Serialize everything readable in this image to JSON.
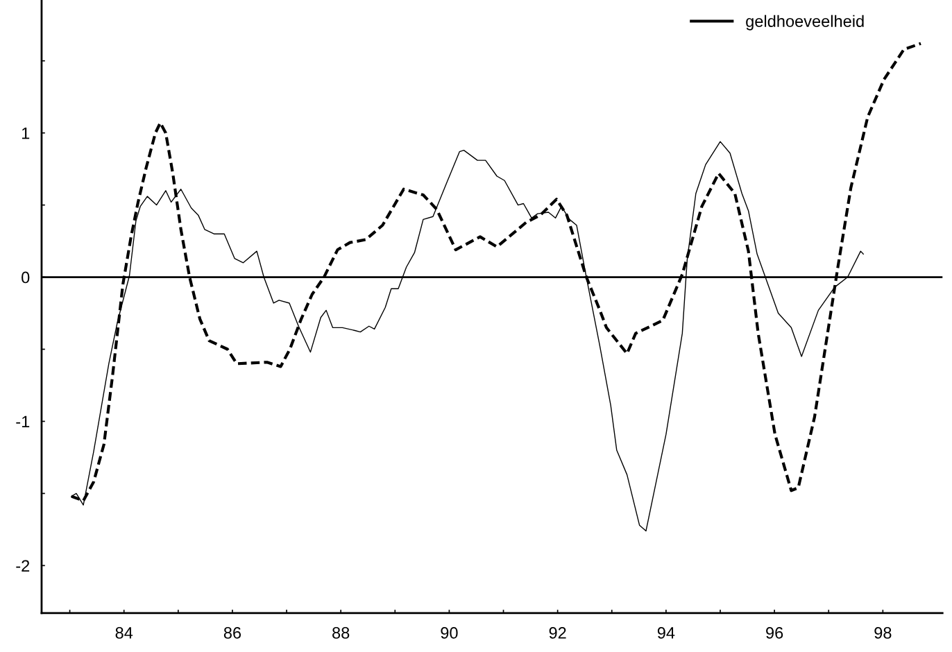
{
  "chart_data": {
    "type": "line",
    "xlim": [
      82.48,
      99.1
    ],
    "ylim": [
      -2.33,
      1.92
    ],
    "xticks": [
      {
        "value": 83,
        "label": null
      },
      84,
      {
        "value": 85,
        "label": null
      },
      86,
      {
        "value": 87,
        "label": null
      },
      88,
      {
        "value": 89,
        "label": null
      },
      90,
      {
        "value": 91,
        "label": null
      },
      92,
      {
        "value": 93,
        "label": null
      },
      94,
      {
        "value": 95,
        "label": null
      },
      96,
      {
        "value": 97,
        "label": null
      },
      98
    ],
    "yticks": [
      -2,
      {
        "value": -1.5,
        "label": null
      },
      -1,
      {
        "value": -0.5,
        "label": null
      },
      0,
      {
        "value": 0.5,
        "label": null
      },
      1,
      {
        "value": 1.5,
        "label": null
      }
    ],
    "grid": false,
    "legend": "top right",
    "ref_lines": [
      {
        "axis": "y",
        "value": 0,
        "color": "#000000",
        "line_style": "solid"
      }
    ],
    "series": [
      {
        "name": "geldhoeveelheid",
        "color": "#000000",
        "line_style": "solid",
        "x": [
          83.03,
          83.12,
          83.25,
          83.44,
          83.72,
          83.88,
          84.1,
          84.22,
          84.3,
          84.43,
          84.6,
          84.77,
          84.87,
          85.05,
          85.24,
          85.37,
          85.49,
          85.66,
          85.85,
          86.04,
          86.2,
          86.45,
          86.58,
          86.76,
          86.86,
          87.05,
          87.22,
          87.44,
          87.63,
          87.73,
          87.85,
          88.03,
          88.26,
          88.36,
          88.52,
          88.62,
          88.82,
          88.93,
          89.06,
          89.21,
          89.36,
          89.52,
          89.7,
          89.96,
          90.19,
          90.27,
          90.52,
          90.67,
          90.88,
          91.02,
          91.27,
          91.37,
          91.52,
          91.63,
          91.83,
          91.96,
          92.07,
          92.22,
          92.35,
          92.53,
          92.78,
          92.98,
          93.09,
          93.28,
          93.51,
          93.63,
          94.0,
          94.3,
          94.39,
          94.55,
          94.73,
          95.0,
          95.18,
          95.4,
          95.52,
          95.68,
          96.07,
          96.31,
          96.5,
          96.81,
          97.11,
          97.35,
          97.59,
          97.64
        ],
        "values": [
          -1.52,
          -1.5,
          -1.58,
          -1.21,
          -0.6,
          -0.31,
          0.01,
          0.39,
          0.49,
          0.56,
          0.5,
          0.6,
          0.52,
          0.61,
          0.48,
          0.43,
          0.33,
          0.3,
          0.3,
          0.13,
          0.1,
          0.18,
          0,
          -0.18,
          -0.16,
          -0.18,
          -0.34,
          -0.52,
          -0.28,
          -0.23,
          -0.35,
          -0.35,
          -0.37,
          -0.38,
          -0.34,
          -0.36,
          -0.21,
          -0.08,
          -0.08,
          0.07,
          0.17,
          0.4,
          0.42,
          0.66,
          0.87,
          0.88,
          0.81,
          0.81,
          0.7,
          0.67,
          0.5,
          0.51,
          0.41,
          0.44,
          0.45,
          0.41,
          0.49,
          0.4,
          0.36,
          0,
          -0.48,
          -0.89,
          -1.2,
          -1.37,
          -1.72,
          -1.76,
          -1.09,
          -0.39,
          0.12,
          0.58,
          0.78,
          0.94,
          0.86,
          0.58,
          0.46,
          0.16,
          -0.25,
          -0.35,
          -0.55,
          -0.23,
          -0.07,
          0,
          0.18,
          0.16
        ]
      },
      {
        "color": "#000000",
        "line_style": "dashed",
        "x": [
          83.03,
          83.25,
          83.44,
          83.63,
          83.79,
          83.98,
          84.13,
          84.26,
          84.41,
          84.58,
          84.67,
          84.77,
          84.9,
          85.05,
          85.21,
          85.4,
          85.57,
          85.91,
          86.08,
          86.64,
          86.89,
          87.06,
          87.27,
          87.47,
          87.69,
          87.94,
          88.17,
          88.46,
          88.77,
          89.16,
          89.52,
          89.77,
          90.12,
          90.57,
          90.88,
          91.42,
          91.68,
          91.98,
          92.17,
          92.53,
          92.78,
          92.9,
          93.28,
          93.44,
          93.94,
          94.3,
          94.66,
          94.97,
          95.27,
          95.52,
          95.7,
          96.01,
          96.31,
          96.44,
          96.74,
          96.98,
          97.17,
          97.41,
          97.72,
          98.02,
          98.39,
          98.7
        ],
        "values": [
          -1.52,
          -1.55,
          -1.42,
          -1.16,
          -0.68,
          -0.05,
          0.28,
          0.52,
          0.76,
          1.0,
          1.07,
          1.0,
          0.72,
          0.33,
          0,
          -0.29,
          -0.44,
          -0.5,
          -0.6,
          -0.59,
          -0.62,
          -0.5,
          -0.29,
          -0.12,
          0,
          0.19,
          0.24,
          0.26,
          0.36,
          0.61,
          0.57,
          0.47,
          0.19,
          0.28,
          0.21,
          0.38,
          0.43,
          0.54,
          0.43,
          0,
          -0.23,
          -0.35,
          -0.53,
          -0.39,
          -0.3,
          0.02,
          0.49,
          0.72,
          0.58,
          0.18,
          -0.39,
          -1.09,
          -1.48,
          -1.46,
          -0.97,
          -0.39,
          0.07,
          0.62,
          1.11,
          1.37,
          1.58,
          1.62
        ]
      }
    ]
  }
}
